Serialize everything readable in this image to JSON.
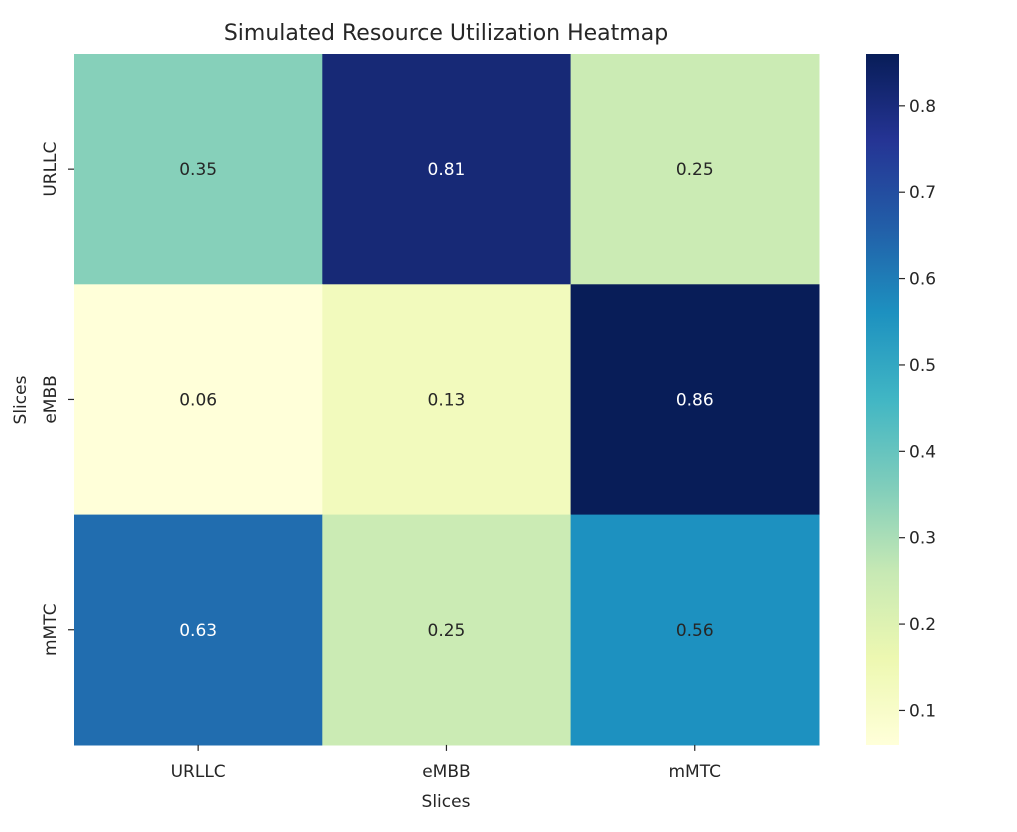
{
  "chart_data": {
    "type": "heatmap",
    "title": "Simulated Resource Utilization Heatmap",
    "xlabel": "Slices",
    "ylabel": "Slices",
    "x_categories": [
      "URLLC",
      "eMBB",
      "mMTC"
    ],
    "y_categories": [
      "URLLC",
      "eMBB",
      "mMTC"
    ],
    "values": [
      [
        0.35,
        0.81,
        0.25
      ],
      [
        0.06,
        0.13,
        0.86
      ],
      [
        0.63,
        0.25,
        0.56
      ]
    ],
    "annotation_labels": [
      [
        "0.35",
        "0.81",
        "0.25"
      ],
      [
        "0.06",
        "0.13",
        "0.86"
      ],
      [
        "0.63",
        "0.25",
        "0.56"
      ]
    ],
    "colormap": "YlGnBu",
    "color_range": [
      0.06,
      0.86
    ],
    "colorbar_ticks": [
      "0.1",
      "0.2",
      "0.3",
      "0.4",
      "0.5",
      "0.6",
      "0.7",
      "0.8"
    ],
    "colorbar_tick_values": [
      0.1,
      0.2,
      0.3,
      0.4,
      0.5,
      0.6,
      0.7,
      0.8
    ],
    "grid": false
  }
}
